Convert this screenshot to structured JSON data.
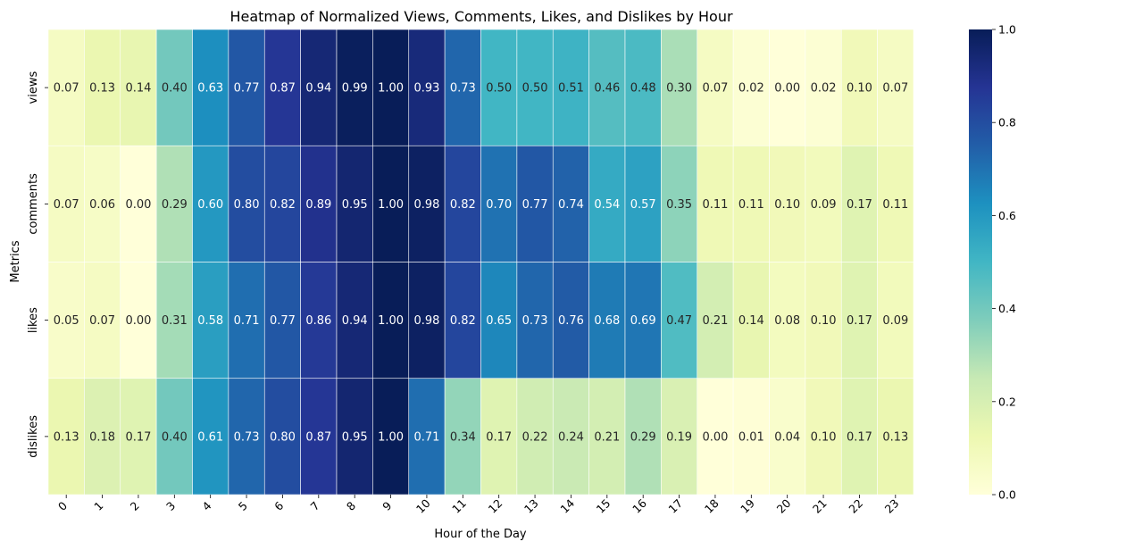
{
  "chart_data": {
    "type": "heatmap",
    "title": "Heatmap of Normalized Views, Comments, Likes, and Dislikes by Hour",
    "xlabel": "Hour of the Day",
    "ylabel": "Metrics",
    "x_categories": [
      "0",
      "1",
      "2",
      "3",
      "4",
      "5",
      "6",
      "7",
      "8",
      "9",
      "10",
      "11",
      "12",
      "13",
      "14",
      "15",
      "16",
      "17",
      "18",
      "19",
      "20",
      "21",
      "22",
      "23"
    ],
    "y_categories": [
      "views",
      "comments",
      "likes",
      "dislikes"
    ],
    "values": [
      [
        0.07,
        0.13,
        0.14,
        0.4,
        0.63,
        0.77,
        0.87,
        0.94,
        0.99,
        1.0,
        0.93,
        0.73,
        0.5,
        0.5,
        0.51,
        0.46,
        0.48,
        0.3,
        0.07,
        0.02,
        0.0,
        0.02,
        0.1,
        0.07
      ],
      [
        0.07,
        0.06,
        0.0,
        0.29,
        0.6,
        0.8,
        0.82,
        0.89,
        0.95,
        1.0,
        0.98,
        0.82,
        0.7,
        0.77,
        0.74,
        0.54,
        0.57,
        0.35,
        0.11,
        0.11,
        0.1,
        0.09,
        0.17,
        0.11
      ],
      [
        0.05,
        0.07,
        0.0,
        0.31,
        0.58,
        0.71,
        0.77,
        0.86,
        0.94,
        1.0,
        0.98,
        0.82,
        0.65,
        0.73,
        0.76,
        0.68,
        0.69,
        0.47,
        0.21,
        0.14,
        0.08,
        0.1,
        0.17,
        0.09
      ],
      [
        0.13,
        0.18,
        0.17,
        0.4,
        0.61,
        0.73,
        0.8,
        0.87,
        0.95,
        1.0,
        0.71,
        0.34,
        0.17,
        0.22,
        0.24,
        0.21,
        0.29,
        0.19,
        0.0,
        0.01,
        0.04,
        0.1,
        0.17,
        0.13
      ]
    ],
    "value_format": "0.00",
    "colorbar": {
      "range": [
        0,
        1
      ],
      "ticks": [
        "0.0",
        "0.2",
        "0.4",
        "0.6",
        "0.8",
        "1.0"
      ]
    },
    "colormap": "YlGnBu",
    "colors": [
      "#ffffd9",
      "#edf8b1",
      "#c7e9b4",
      "#7fcdbb",
      "#41b6c4",
      "#1d91c0",
      "#225ea8",
      "#253494",
      "#081d58"
    ]
  }
}
